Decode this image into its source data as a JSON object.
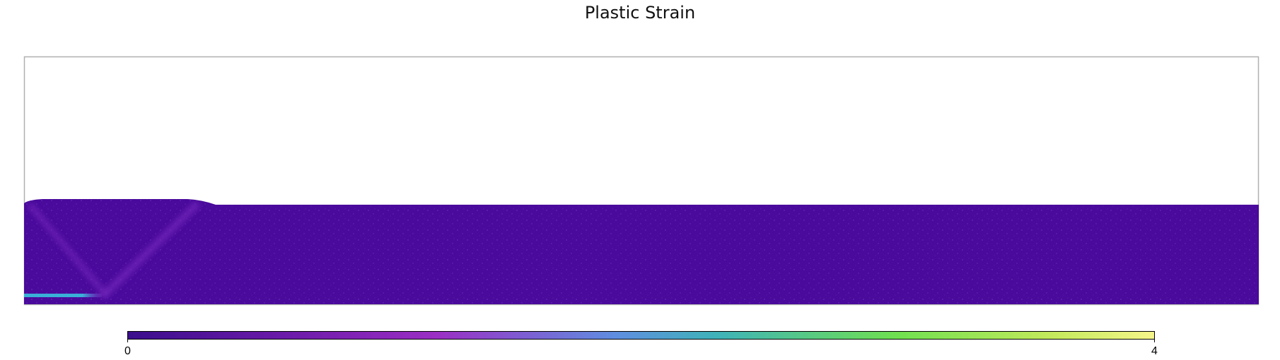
{
  "chart_data": {
    "type": "heatmap",
    "title": "Plastic Strain",
    "xlabel": "",
    "ylabel": "",
    "grid": false,
    "colorbar": {
      "orientation": "horizontal",
      "placement": "bottom",
      "min": 0,
      "max": 4,
      "ticks": [
        0,
        4
      ],
      "tick_labels": [
        "0",
        "4"
      ],
      "colormap": "plasma-viridis blend",
      "stops": [
        {
          "value": 0,
          "color": "#3b0f8c"
        },
        {
          "value": 0.6,
          "color": "#6a1aa8"
        },
        {
          "value": 1.2,
          "color": "#9b2fc4"
        },
        {
          "value": 1.9,
          "color": "#5f8ee0"
        },
        {
          "value": 2.3,
          "color": "#3fb3b8"
        },
        {
          "value": 3.0,
          "color": "#70e050"
        },
        {
          "value": 3.6,
          "color": "#c4ea5c"
        },
        {
          "value": 4.0,
          "color": "#f5f58a"
        }
      ]
    },
    "field": {
      "background_value": 0.1,
      "background_color": "#4a0a9c",
      "features": [
        {
          "name": "left shear band",
          "value": 1.0,
          "color": "#7a2cc0"
        },
        {
          "name": "right shear band",
          "value": 1.0,
          "color": "#7a2cc0"
        },
        {
          "name": "bottom-left strain layer",
          "value": 2.2,
          "color": "#3ab0d8"
        }
      ]
    }
  }
}
